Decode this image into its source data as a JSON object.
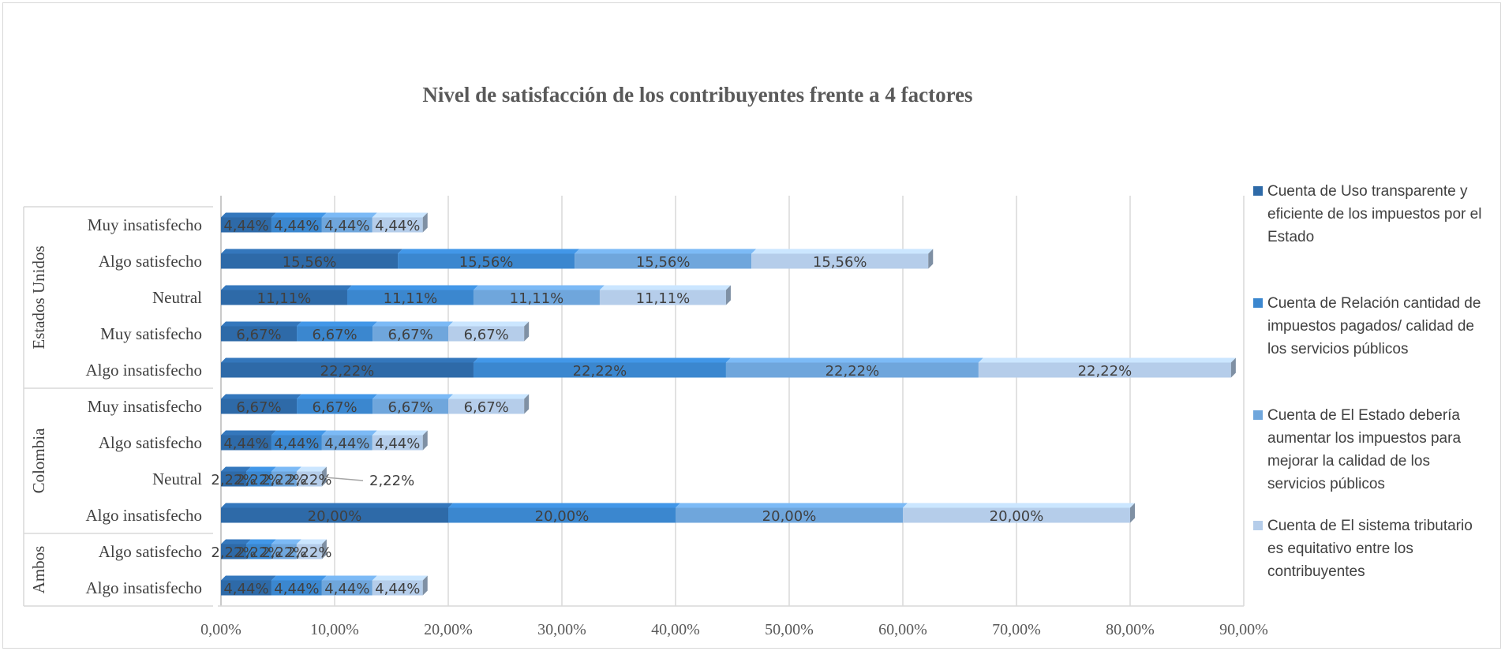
{
  "chart_data": {
    "type": "bar",
    "orientation": "horizontal",
    "stacked": true,
    "title": "Nivel de satisfacción de los contribuyentes frente a 4 factores",
    "groups": [
      {
        "name": "Estados Unidos",
        "categories": [
          "Muy insatisfecho",
          "Algo satisfecho",
          "Neutral",
          "Muy satisfecho",
          "Algo insatisfecho"
        ]
      },
      {
        "name": "Colombia",
        "categories": [
          "Muy insatisfecho",
          "Algo satisfecho",
          "Neutral",
          "Algo insatisfecho"
        ]
      },
      {
        "name": "Ambos",
        "categories": [
          "Algo satisfecho",
          "Algo insatisfecho"
        ]
      }
    ],
    "categories": [
      "Muy insatisfecho",
      "Algo satisfecho",
      "Neutral",
      "Muy satisfecho",
      "Algo insatisfecho",
      "Muy insatisfecho",
      "Algo satisfecho",
      "Neutral",
      "Algo insatisfecho",
      "Algo satisfecho",
      "Algo insatisfecho"
    ],
    "series": [
      {
        "name": "Cuenta de Uso transparente y eficiente de los impuestos por el Estado",
        "color": "#2e6aa8",
        "values": [
          4.44,
          15.56,
          11.11,
          6.67,
          22.22,
          6.67,
          4.44,
          2.22,
          20.0,
          2.22,
          4.44
        ]
      },
      {
        "name": "Cuenta de Relación cantidad de impuestos pagados/ calidad de los servicios públicos",
        "color": "#3b87cf",
        "values": [
          4.44,
          15.56,
          11.11,
          6.67,
          22.22,
          6.67,
          4.44,
          2.22,
          20.0,
          2.22,
          4.44
        ]
      },
      {
        "name": "Cuenta de El Estado debería aumentar los impuestos para mejorar la calidad de los servicios públicos",
        "color": "#6fa6dc",
        "values": [
          4.44,
          15.56,
          11.11,
          6.67,
          22.22,
          6.67,
          4.44,
          2.22,
          20.0,
          2.22,
          4.44
        ]
      },
      {
        "name": "Cuenta de El sistema tributario es equitativo entre los contribuyentes",
        "color": "#b5cdea",
        "values": [
          4.44,
          15.56,
          11.11,
          6.67,
          22.22,
          6.67,
          4.44,
          2.22,
          20.0,
          2.22,
          4.44
        ]
      }
    ],
    "data_labels": [
      [
        "4,44%",
        "4,44%",
        "4,44%",
        "4,44%"
      ],
      [
        "15,56%",
        "15,56%",
        "15,56%",
        "15,56%"
      ],
      [
        "11,11%",
        "11,11%",
        "11,11%",
        "11,11%"
      ],
      [
        "6,67%",
        "6,67%",
        "6,67%",
        "6,67%"
      ],
      [
        "22,22%",
        "22,22%",
        "22,22%",
        "22,22%"
      ],
      [
        "6,67%",
        "6,67%",
        "6,67%",
        "6,67%"
      ],
      [
        "4,44%",
        "4,44%",
        "4,44%",
        "4,44%"
      ],
      [
        "2,22%",
        "2,22%",
        "2,22%",
        "2,22%"
      ],
      [
        "20,00%",
        "20,00%",
        "20,00%",
        "20,00%"
      ],
      [
        "2,22%",
        "2,22%",
        "2,22%",
        "2,22%"
      ],
      [
        "4,44%",
        "4,44%",
        "4,44%",
        "4,44%"
      ]
    ],
    "xlim": [
      0,
      90
    ],
    "xticks": [
      0,
      10,
      20,
      30,
      40,
      50,
      60,
      70,
      80,
      90
    ],
    "xtick_labels": [
      "0,00%",
      "10,00%",
      "20,00%",
      "30,00%",
      "40,00%",
      "50,00%",
      "60,00%",
      "70,00%",
      "80,00%",
      "90,00%"
    ],
    "grid": true,
    "legend_position": "right"
  }
}
